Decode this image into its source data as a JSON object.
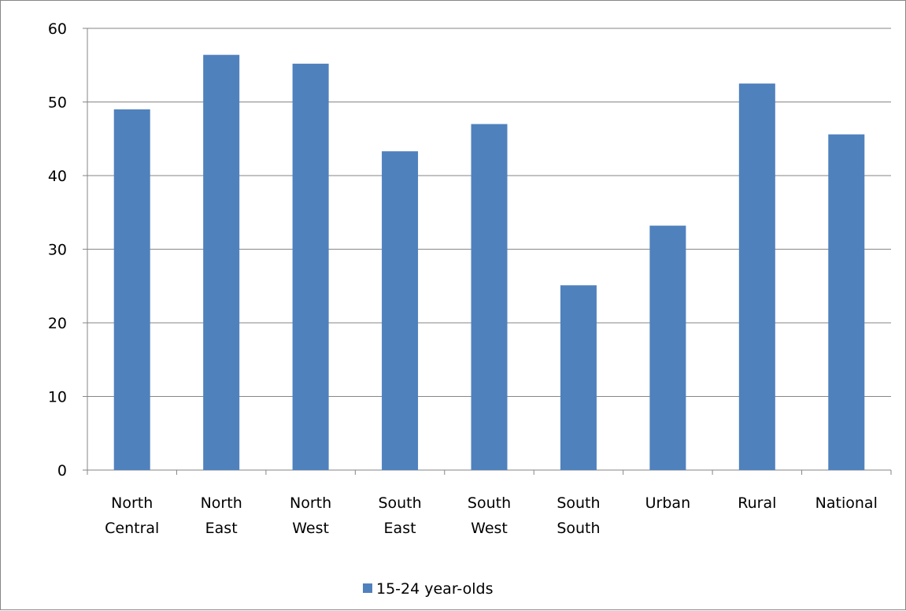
{
  "chart_data": {
    "type": "bar",
    "categories": [
      [
        "North",
        "Central"
      ],
      [
        "North",
        "East"
      ],
      [
        "North",
        "West"
      ],
      [
        "South",
        "East"
      ],
      [
        "South",
        "West"
      ],
      [
        "South",
        "South"
      ],
      [
        "Urban"
      ],
      [
        "Rural"
      ],
      [
        "National"
      ]
    ],
    "series": [
      {
        "name": "15-24 year-olds",
        "color": "#4F81BD",
        "values": [
          49.0,
          56.4,
          55.2,
          43.3,
          47.0,
          25.1,
          33.2,
          52.5,
          45.6
        ]
      }
    ],
    "yticks": [
      "0",
      "10",
      "20",
      "30",
      "40",
      "50",
      "60"
    ],
    "ylim": [
      0,
      60
    ],
    "grid": true,
    "legend_position": "bottom"
  }
}
